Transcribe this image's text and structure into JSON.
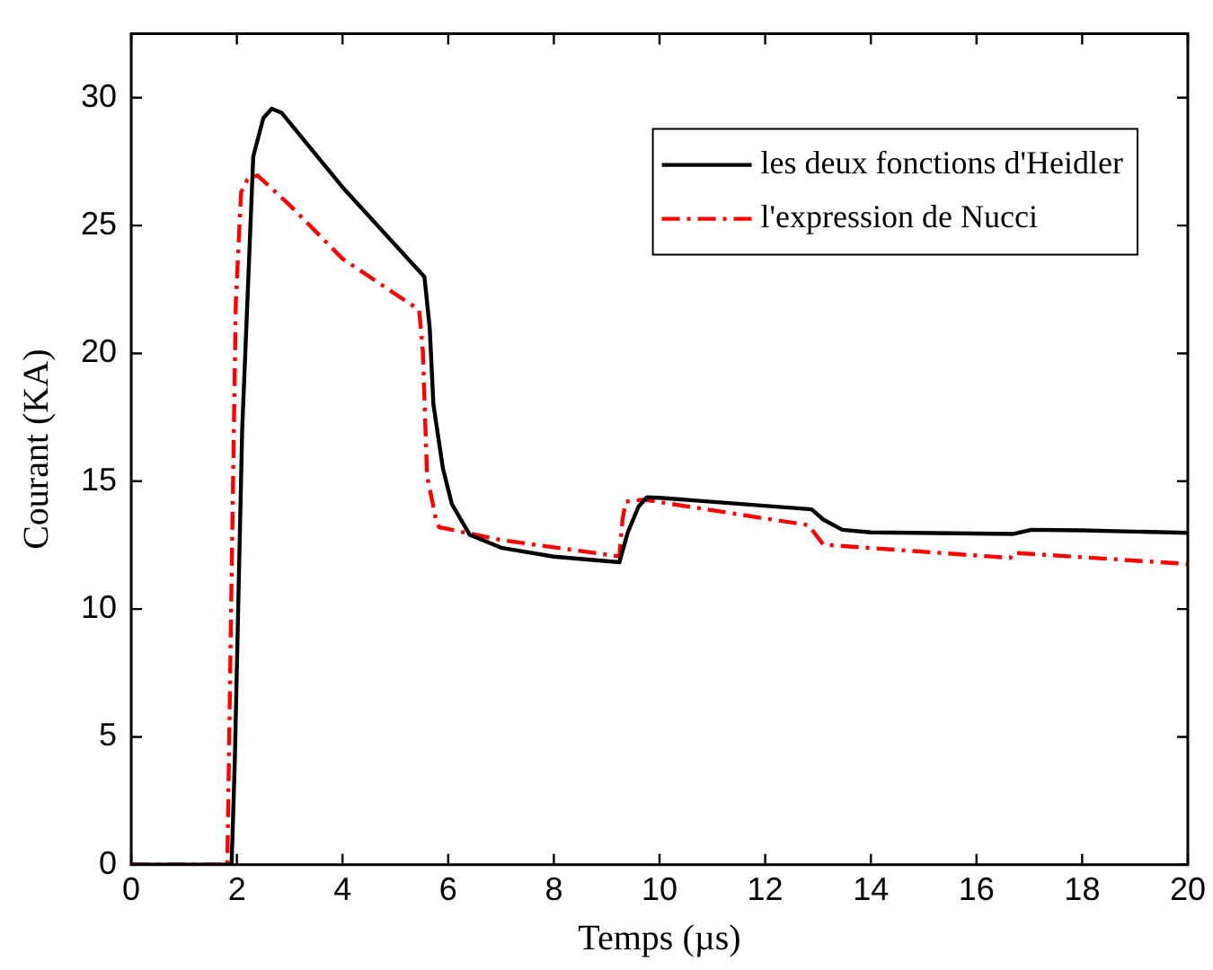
{
  "chart_data": {
    "type": "line",
    "xlabel": "Temps (µs)",
    "ylabel": "Courant (KA)",
    "xlim": [
      0,
      20
    ],
    "xticks": [
      0,
      2,
      4,
      6,
      8,
      10,
      12,
      14,
      16,
      18,
      20
    ],
    "ylim": [
      0,
      32.5
    ],
    "yticks": [
      0,
      5,
      10,
      15,
      20,
      25,
      30
    ],
    "grid": false,
    "legend": "top right",
    "marker": "none",
    "series": [
      {
        "name": "les deux fonctions d'Heidler",
        "color": "#000000",
        "line_style": "solid",
        "x": [
          0,
          1.9,
          1.96,
          2.1,
          2.31,
          2.5,
          2.66,
          2.85,
          4,
          5.55,
          5.65,
          5.72,
          5.9,
          6.07,
          6.41,
          7,
          8,
          9.24,
          9.4,
          9.6,
          9.76,
          10,
          12.88,
          13.1,
          13.46,
          14,
          16.7,
          17.04,
          18,
          20
        ],
        "values": [
          0,
          0,
          4,
          17,
          27.7,
          29.2,
          29.57,
          29.4,
          26.5,
          22.99,
          21,
          18,
          15.5,
          14.1,
          12.9,
          12.4,
          12.05,
          11.83,
          13,
          14,
          14.37,
          14.35,
          13.9,
          13.5,
          13.1,
          13.0,
          12.94,
          13.1,
          13.08,
          12.98
        ]
      },
      {
        "name": "l'expression de Nucci",
        "color": "#ff0000",
        "line_style": "dashed",
        "x": [
          0,
          1.82,
          1.9,
          1.98,
          2.08,
          2.2,
          2.39,
          3,
          4,
          5.45,
          5.52,
          5.6,
          5.78,
          5.83,
          7,
          9.24,
          9.3,
          9.36,
          9.7,
          12.82,
          13.1,
          16.64,
          16.7,
          19.87,
          20
        ],
        "values": [
          0,
          0,
          11.3,
          22,
          26.3,
          26.8,
          26.96,
          25.8,
          23.7,
          21.7,
          20.1,
          15.2,
          13.4,
          13.2,
          12.7,
          12.06,
          13.5,
          14.2,
          14.28,
          13.28,
          12.52,
          12.0,
          12.2,
          11.78,
          11.75
        ]
      }
    ]
  }
}
